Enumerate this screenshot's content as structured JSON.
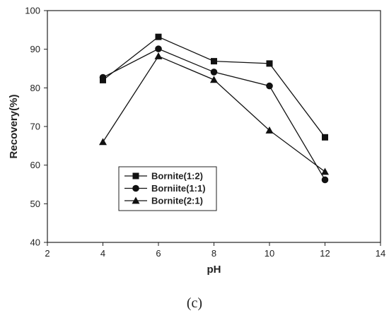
{
  "caption": "(c)",
  "chart_data": {
    "type": "line",
    "title": "",
    "xlabel": "pH",
    "ylabel": "Recovery(%)",
    "xlim": [
      2,
      14
    ],
    "ylim": [
      40,
      100
    ],
    "xticks": [
      "2",
      "4",
      "6",
      "8",
      "10",
      "12",
      "14"
    ],
    "yticks": [
      "40",
      "50",
      "60",
      "70",
      "80",
      "90",
      "100"
    ],
    "grid": false,
    "legend_position": "lower-left",
    "x": [
      4,
      6,
      8,
      10,
      12
    ],
    "series": [
      {
        "name": "Bornite(1:2)",
        "marker": "square",
        "values": [
          82.0,
          93.2,
          86.9,
          86.3,
          67.2
        ]
      },
      {
        "name": "Borniite(1:1)",
        "marker": "circle",
        "values": [
          82.7,
          90.1,
          84.1,
          80.5,
          56.2
        ]
      },
      {
        "name": "Bornite(2:1)",
        "marker": "triangle",
        "values": [
          66.0,
          88.2,
          82.1,
          69.0,
          58.3
        ]
      }
    ],
    "colors": {
      "line": "#111111",
      "axis": "#222222"
    }
  }
}
